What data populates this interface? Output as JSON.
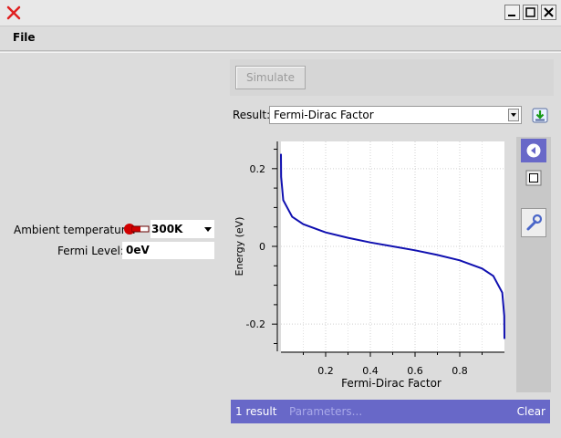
{
  "window": {
    "buttons": [
      "_",
      "□",
      "X"
    ]
  },
  "menu": {
    "file": "File"
  },
  "inputs": {
    "ambient_label": "Ambient temperature:",
    "ambient_value": "300K",
    "fermi_label": "Fermi Level:",
    "fermi_value": "0eV"
  },
  "toolbar": {
    "simulate": "Simulate"
  },
  "result": {
    "label": "Result:",
    "value": "Fermi-Dirac Factor"
  },
  "status": {
    "count": "1 result",
    "parameters": "Parameters...",
    "clear": "Clear"
  },
  "colors": {
    "status_bar": "#6868c8",
    "curve": "#1010b0"
  },
  "icons": [
    "close-icon",
    "minimize-icon",
    "maximize-icon",
    "thermometer-icon",
    "download-icon",
    "back-icon",
    "zoom-box-icon",
    "wrench-icon"
  ],
  "chart_data": {
    "type": "line",
    "xlabel": "Fermi-Dirac Factor",
    "ylabel": "Energy (eV)",
    "xlim": [
      0,
      1
    ],
    "ylim": [
      -0.27,
      0.27
    ],
    "xticks": [
      "0.2",
      "0.4",
      "0.6",
      "0.8"
    ],
    "yticks": [
      "0.2",
      "0",
      "-0.2"
    ],
    "grid": true,
    "x": [
      0.0001,
      0.001,
      0.01,
      0.05,
      0.1,
      0.2,
      0.3,
      0.4,
      0.5,
      0.6,
      0.7,
      0.8,
      0.9,
      0.95,
      0.99,
      0.999,
      0.9999
    ],
    "y": [
      0.238,
      0.179,
      0.119,
      0.076,
      0.057,
      0.036,
      0.022,
      0.01,
      0.0,
      -0.01,
      -0.022,
      -0.036,
      -0.057,
      -0.076,
      -0.119,
      -0.179,
      -0.238
    ]
  }
}
